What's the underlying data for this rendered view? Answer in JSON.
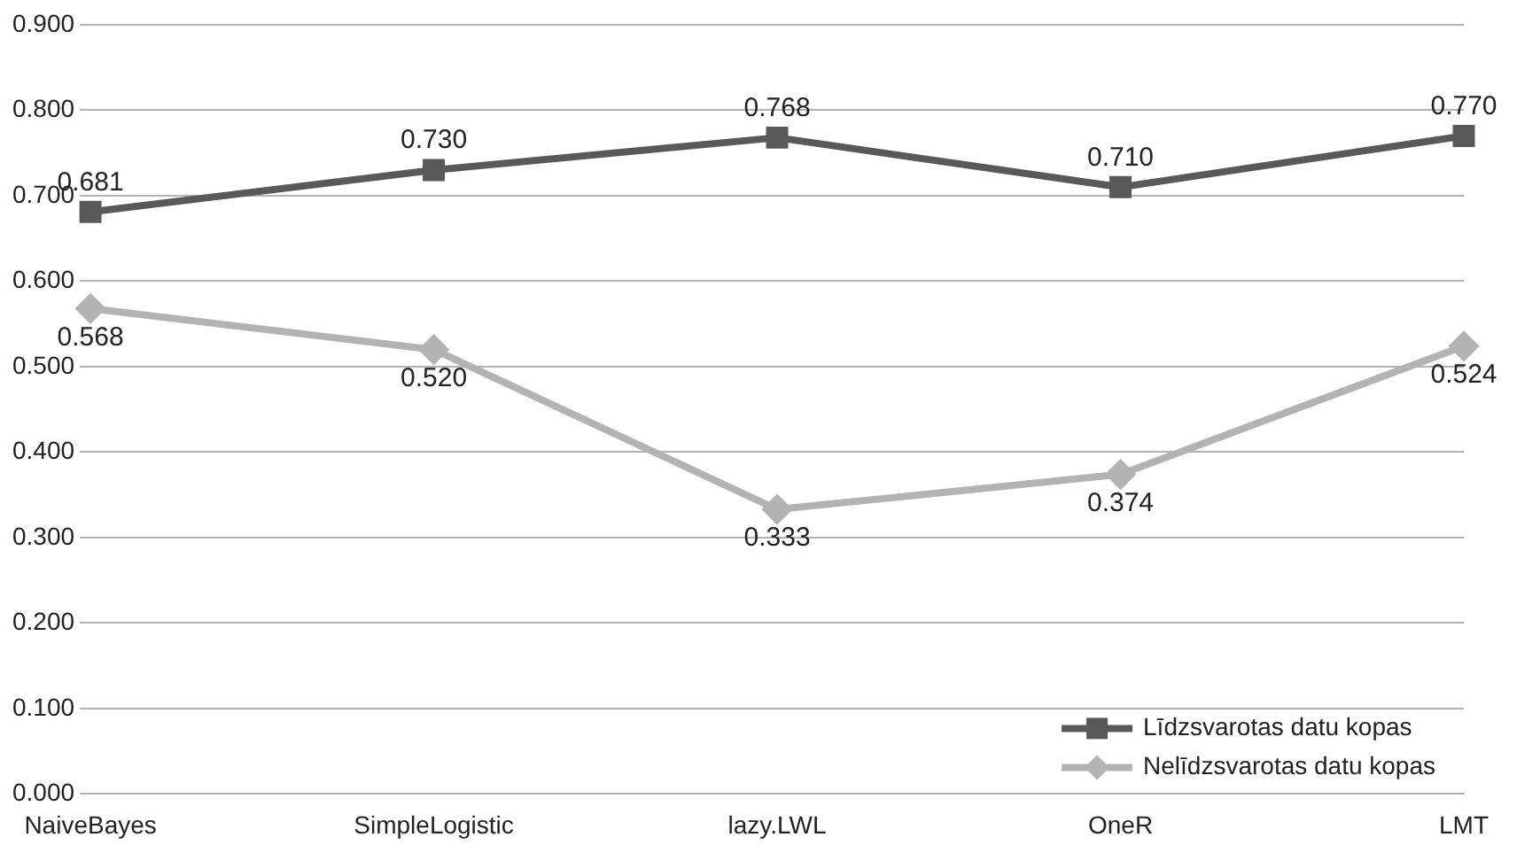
{
  "chart_data": {
    "type": "line",
    "categories": [
      "NaiveBayes",
      "SimpleLogistic",
      "lazy.LWL",
      "OneR",
      "LMT"
    ],
    "series": [
      {
        "name": "Līdzsvarotas datu kopas",
        "color": "#595959",
        "marker": "square",
        "values": [
          0.681,
          0.73,
          0.768,
          0.71,
          0.77
        ],
        "value_labels": [
          "0.681",
          "0.730",
          "0.768",
          "0.710",
          "0.770"
        ]
      },
      {
        "name": "Nelīdzsvarotas datu kopas",
        "color": "#b3b3b3",
        "marker": "diamond",
        "values": [
          0.568,
          0.52,
          0.333,
          0.374,
          0.524
        ],
        "value_labels": [
          "0.568",
          "0.520",
          "0.333",
          "0.374",
          "0.524"
        ]
      }
    ],
    "ylim": [
      0,
      0.9
    ],
    "yticks": [
      {
        "value": 0,
        "label": "0.000"
      },
      {
        "value": 0.1,
        "label": "0.100"
      },
      {
        "value": 0.2,
        "label": "0.200"
      },
      {
        "value": 0.3,
        "label": "0.300"
      },
      {
        "value": 0.4,
        "label": "0.400"
      },
      {
        "value": 0.5,
        "label": "0.500"
      },
      {
        "value": 0.6,
        "label": "0.600"
      },
      {
        "value": 0.7,
        "label": "0.700"
      },
      {
        "value": 0.8,
        "label": "0.800"
      },
      {
        "value": 0.9,
        "label": "0.900"
      }
    ],
    "grid": "y",
    "legend": "bottom right",
    "line_style": "solid"
  }
}
